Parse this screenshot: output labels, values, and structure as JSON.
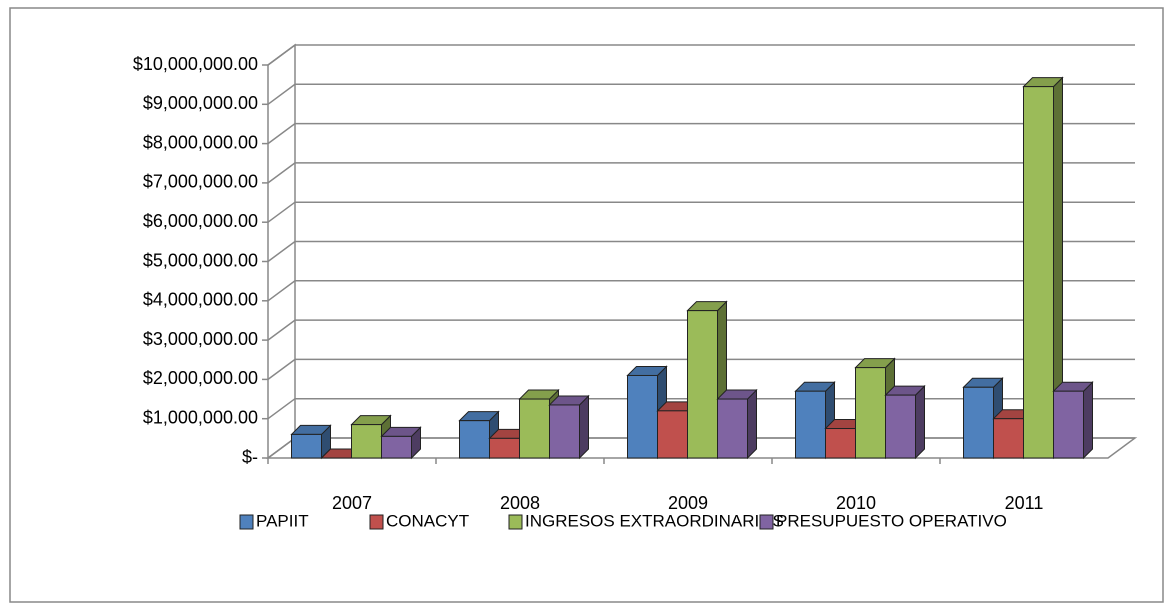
{
  "chart_data": {
    "type": "bar3d",
    "categories": [
      "2007",
      "2008",
      "2009",
      "2010",
      "2011"
    ],
    "series": [
      {
        "name": "PAPIIT",
        "color": "#4f81bd",
        "values": [
          600000,
          950000,
          2100000,
          1700000,
          1800000
        ]
      },
      {
        "name": "CONACYT",
        "color": "#c0504d",
        "values": [
          0,
          500000,
          1200000,
          750000,
          1000000
        ]
      },
      {
        "name": "INGRESOS EXTRAORDINARIOS",
        "color": "#9bbb59",
        "values": [
          850000,
          1500000,
          3750000,
          2300000,
          9450000
        ]
      },
      {
        "name": "PRESUPUESTO OPERATIVO",
        "color": "#8064a2",
        "values": [
          550000,
          1350000,
          1500000,
          1600000,
          1700000
        ]
      }
    ],
    "ylim": [
      0,
      10000000
    ],
    "yticks": [
      {
        "value": 0,
        "label": "$-"
      },
      {
        "value": 1000000,
        "label": "$1,000,000.00"
      },
      {
        "value": 2000000,
        "label": "$2,000,000.00"
      },
      {
        "value": 3000000,
        "label": "$3,000,000.00"
      },
      {
        "value": 4000000,
        "label": "$4,000,000.00"
      },
      {
        "value": 5000000,
        "label": "$5,000,000.00"
      },
      {
        "value": 6000000,
        "label": "$6,000,000.00"
      },
      {
        "value": 7000000,
        "label": "$7,000,000.00"
      },
      {
        "value": 8000000,
        "label": "$8,000,000.00"
      },
      {
        "value": 9000000,
        "label": "$9,000,000.00"
      },
      {
        "value": 10000000,
        "label": "$10,000,000.00"
      }
    ],
    "grid": true,
    "legend": "bottom"
  }
}
